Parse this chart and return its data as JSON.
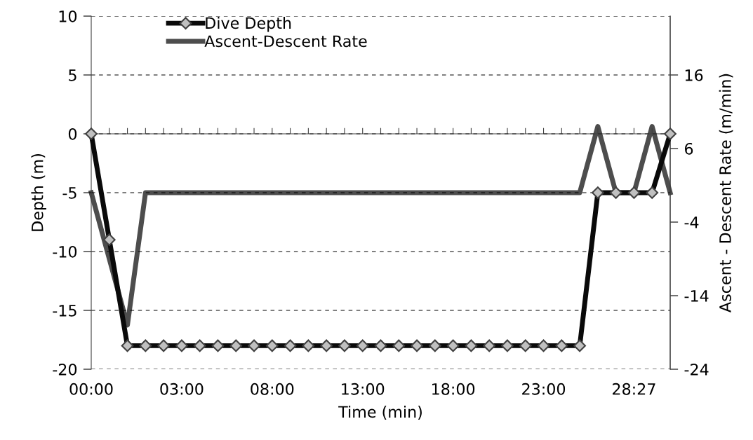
{
  "chart_data": {
    "type": "line",
    "xlabel": "Time (min)",
    "ylabel": "Depth (m)",
    "y2label": "Ascent - Descent Rate (m/min)",
    "categories": [
      "00:00",
      null,
      null,
      null,
      null,
      "03:00",
      null,
      null,
      null,
      null,
      "08:00",
      null,
      null,
      null,
      null,
      "13:00",
      null,
      null,
      null,
      null,
      "18:00",
      null,
      null,
      null,
      null,
      "23:00",
      null,
      null,
      null,
      null,
      "28:27",
      null,
      null
    ],
    "series": [
      {
        "name": "Dive Depth",
        "color": "#0a0a0a",
        "marker": "diamond",
        "values": [
          0,
          -9,
          -18,
          -18,
          -18,
          -18,
          -18,
          -18,
          -18,
          -18,
          -18,
          -18,
          -18,
          -18,
          -18,
          -18,
          -18,
          -18,
          -18,
          -18,
          -18,
          -18,
          -18,
          -18,
          -18,
          -18,
          -18,
          -18,
          -5,
          -5,
          -5,
          -5,
          0
        ]
      },
      {
        "name": "Ascent-Descent Rate",
        "color": "#4d4d4d",
        "marker": "none",
        "axis": "y2",
        "values": [
          0,
          -9,
          -18,
          0,
          0,
          0,
          0,
          0,
          0,
          0,
          0,
          0,
          0,
          0,
          0,
          0,
          0,
          0,
          0,
          0,
          0,
          0,
          0,
          0,
          0,
          0,
          0,
          0,
          9,
          0,
          0,
          9,
          0
        ]
      }
    ],
    "ylim": [
      -20,
      10
    ],
    "yticks": [
      -20,
      -15,
      -10,
      -5,
      0,
      5,
      10
    ],
    "y2lim": [
      -24,
      24
    ],
    "y2ticks": [
      -24,
      -14,
      -4,
      6,
      16
    ],
    "grid": "y",
    "legend": "top left",
    "line_style": "solid"
  }
}
